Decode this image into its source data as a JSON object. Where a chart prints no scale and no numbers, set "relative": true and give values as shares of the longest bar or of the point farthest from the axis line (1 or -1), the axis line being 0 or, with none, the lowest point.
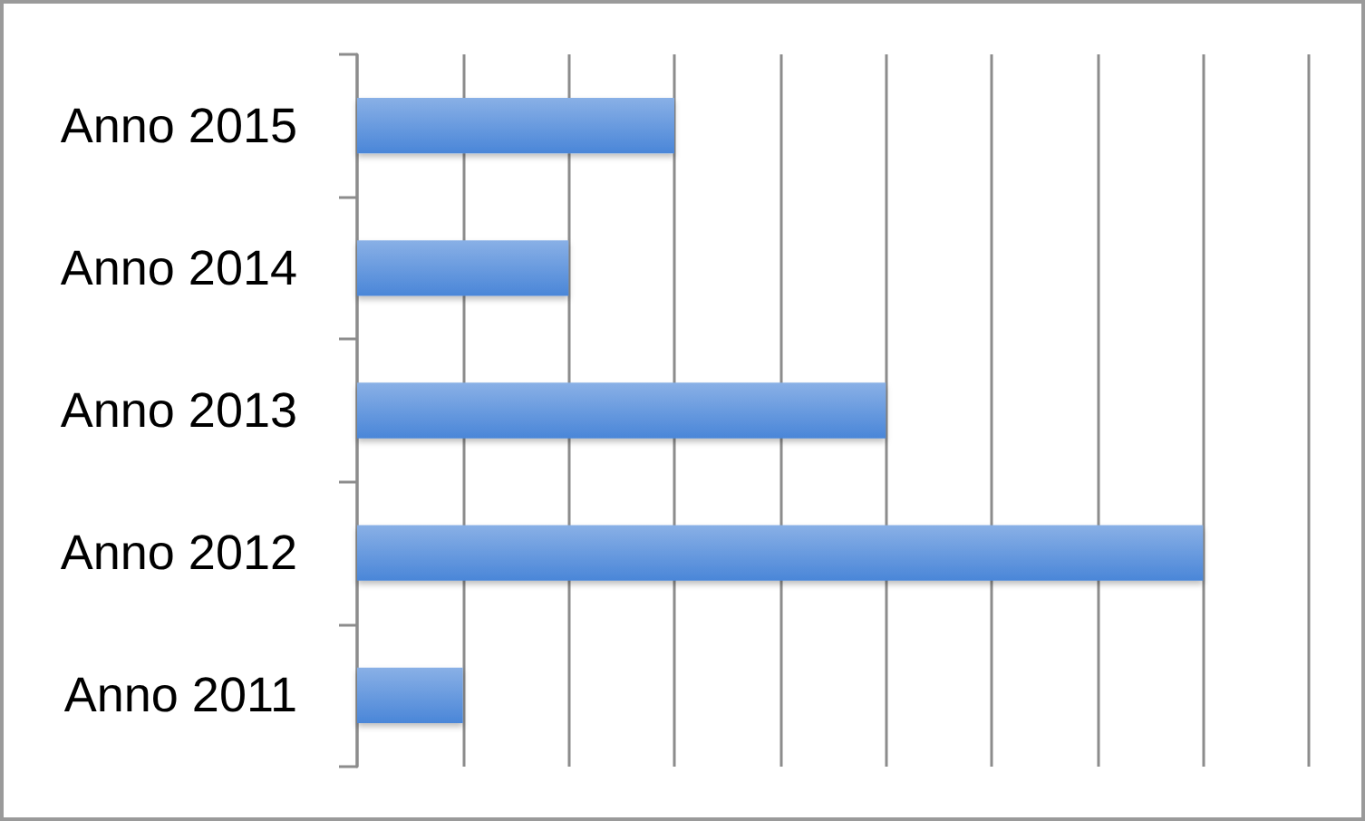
{
  "chart_data": {
    "type": "bar",
    "orientation": "horizontal",
    "relative": true,
    "categories": [
      "Anno 2015",
      "Anno 2014",
      "Anno 2013",
      "Anno 2012",
      "Anno 2011"
    ],
    "values": [
      0.375,
      0.25,
      0.625,
      1,
      0.125
    ],
    "color": "#4a86d8",
    "grid": "x",
    "tick_labels": "y"
  }
}
